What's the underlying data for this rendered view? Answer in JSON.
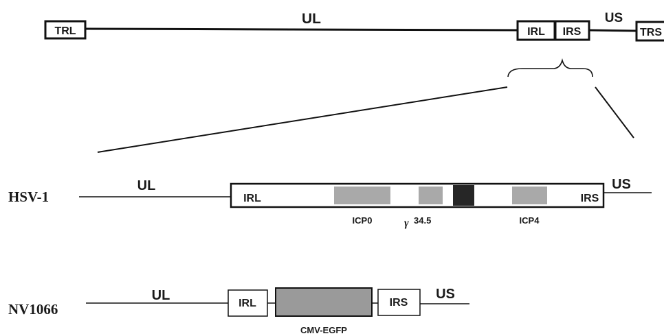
{
  "genome": {
    "ul": "UL",
    "trl": "TRL",
    "irl": "IRL",
    "irs": "IRS",
    "us": "US",
    "trs": "TRS"
  },
  "hsv1": {
    "name": "HSV-1",
    "ul": "UL",
    "us": "US",
    "irl": "IRL",
    "irs": "IRS",
    "icp0": "ICP0",
    "gamma_symbol": "γ",
    "g345": "34.5",
    "icp4": "ICP4"
  },
  "nv1066": {
    "name": "NV1066",
    "ul": "UL",
    "us": "US",
    "irl": "IRL",
    "irs": "IRS",
    "cassette": "CMV-EGFP"
  },
  "colors": {
    "line": "#111111",
    "gene_fill": "#a9a9a9",
    "dark_block": "#262626",
    "cassette_fill": "#9a9a9a"
  }
}
